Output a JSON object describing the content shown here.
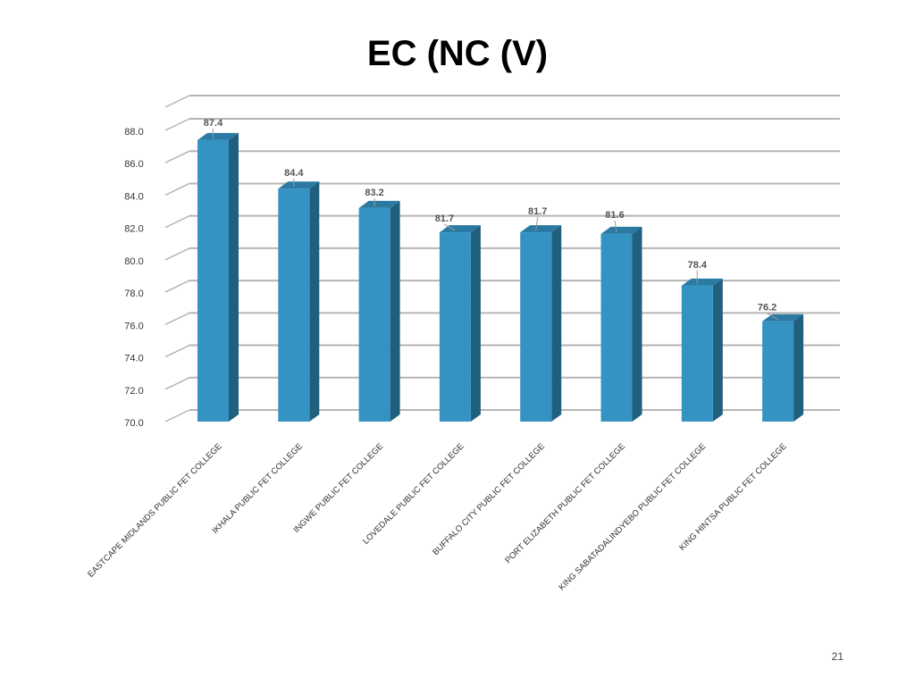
{
  "page": {
    "title": "EC (NC (V)",
    "page_number": "21"
  },
  "colors": {
    "bar_front": "#3593c4",
    "bar_side": "#215f7e",
    "bar_top": "#2a7aa3",
    "grid": "#b5b5b5",
    "axis_text": "#333333",
    "label_text": "#555555"
  },
  "chart_data": {
    "type": "bar",
    "title": "EC (NC (V)",
    "categories": [
      "EASTCAPE MIDLANDS PUBLIC FET COLLEGE",
      "IKHALA PUBLIC FET COLLEGE",
      "INGWE PUBLIC FET COLLEGE",
      "LOVEDALE PUBLIC FET COLLEGE",
      "BUFFALO CITY PUBLIC FET COLLEGE",
      "PORT ELIZABETH PUBLIC FET COLLEGE",
      "KING SABATADALINDYEBO PUBLIC FET COLLEGE",
      "KING HINTSA PUBLIC FET COLLEGE"
    ],
    "values": [
      87.4,
      84.4,
      83.2,
      81.7,
      81.7,
      81.6,
      78.4,
      76.2
    ],
    "data_labels": [
      "87.4",
      "84.4",
      "83.2",
      "81.7",
      "81.7",
      "81.6",
      "78.4",
      "76.2"
    ],
    "ylim": [
      70.0,
      88.0
    ],
    "yticks": [
      "70.0",
      "72.0",
      "74.0",
      "76.0",
      "78.0",
      "80.0",
      "82.0",
      "84.0",
      "86.0",
      "88.0"
    ],
    "grid": true,
    "style": "3d-column",
    "legend": "none"
  }
}
